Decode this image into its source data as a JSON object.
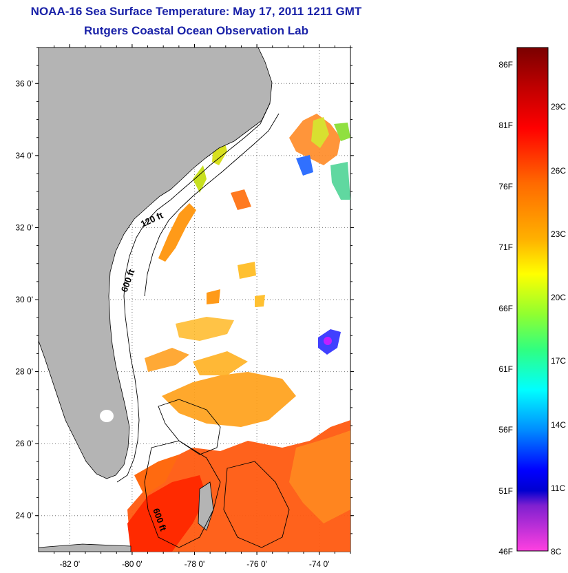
{
  "title": {
    "line1": "NOAA-16 Sea Surface Temperature:  May 17, 2011 1211 GMT",
    "line2": "Rutgers Coastal Ocean Observation Lab"
  },
  "map": {
    "lat_range": [
      23.0,
      37.0
    ],
    "lon_range": [
      -83.0,
      -73.0
    ],
    "lat_ticks": [
      "24 0'",
      "26 0'",
      "28 0'",
      "30 0'",
      "32 0'",
      "34 0'",
      "36 0'"
    ],
    "lon_ticks": [
      "-82 0'",
      "-80 0'",
      "-78 0'",
      "-76 0'",
      "-74 0'"
    ],
    "contours": {
      "label_120": "120 ft",
      "label_600a": "600 ft",
      "label_600b": "600 ft"
    },
    "land_color": "#b4b4b4"
  },
  "colorbar": {
    "fahrenheit": [
      "86F",
      "81F",
      "76F",
      "71F",
      "66F",
      "61F",
      "56F",
      "51F",
      "46F"
    ],
    "celsius": [
      "29C",
      "26C",
      "23C",
      "20C",
      "17C",
      "14C",
      "11C",
      "8C"
    ]
  }
}
